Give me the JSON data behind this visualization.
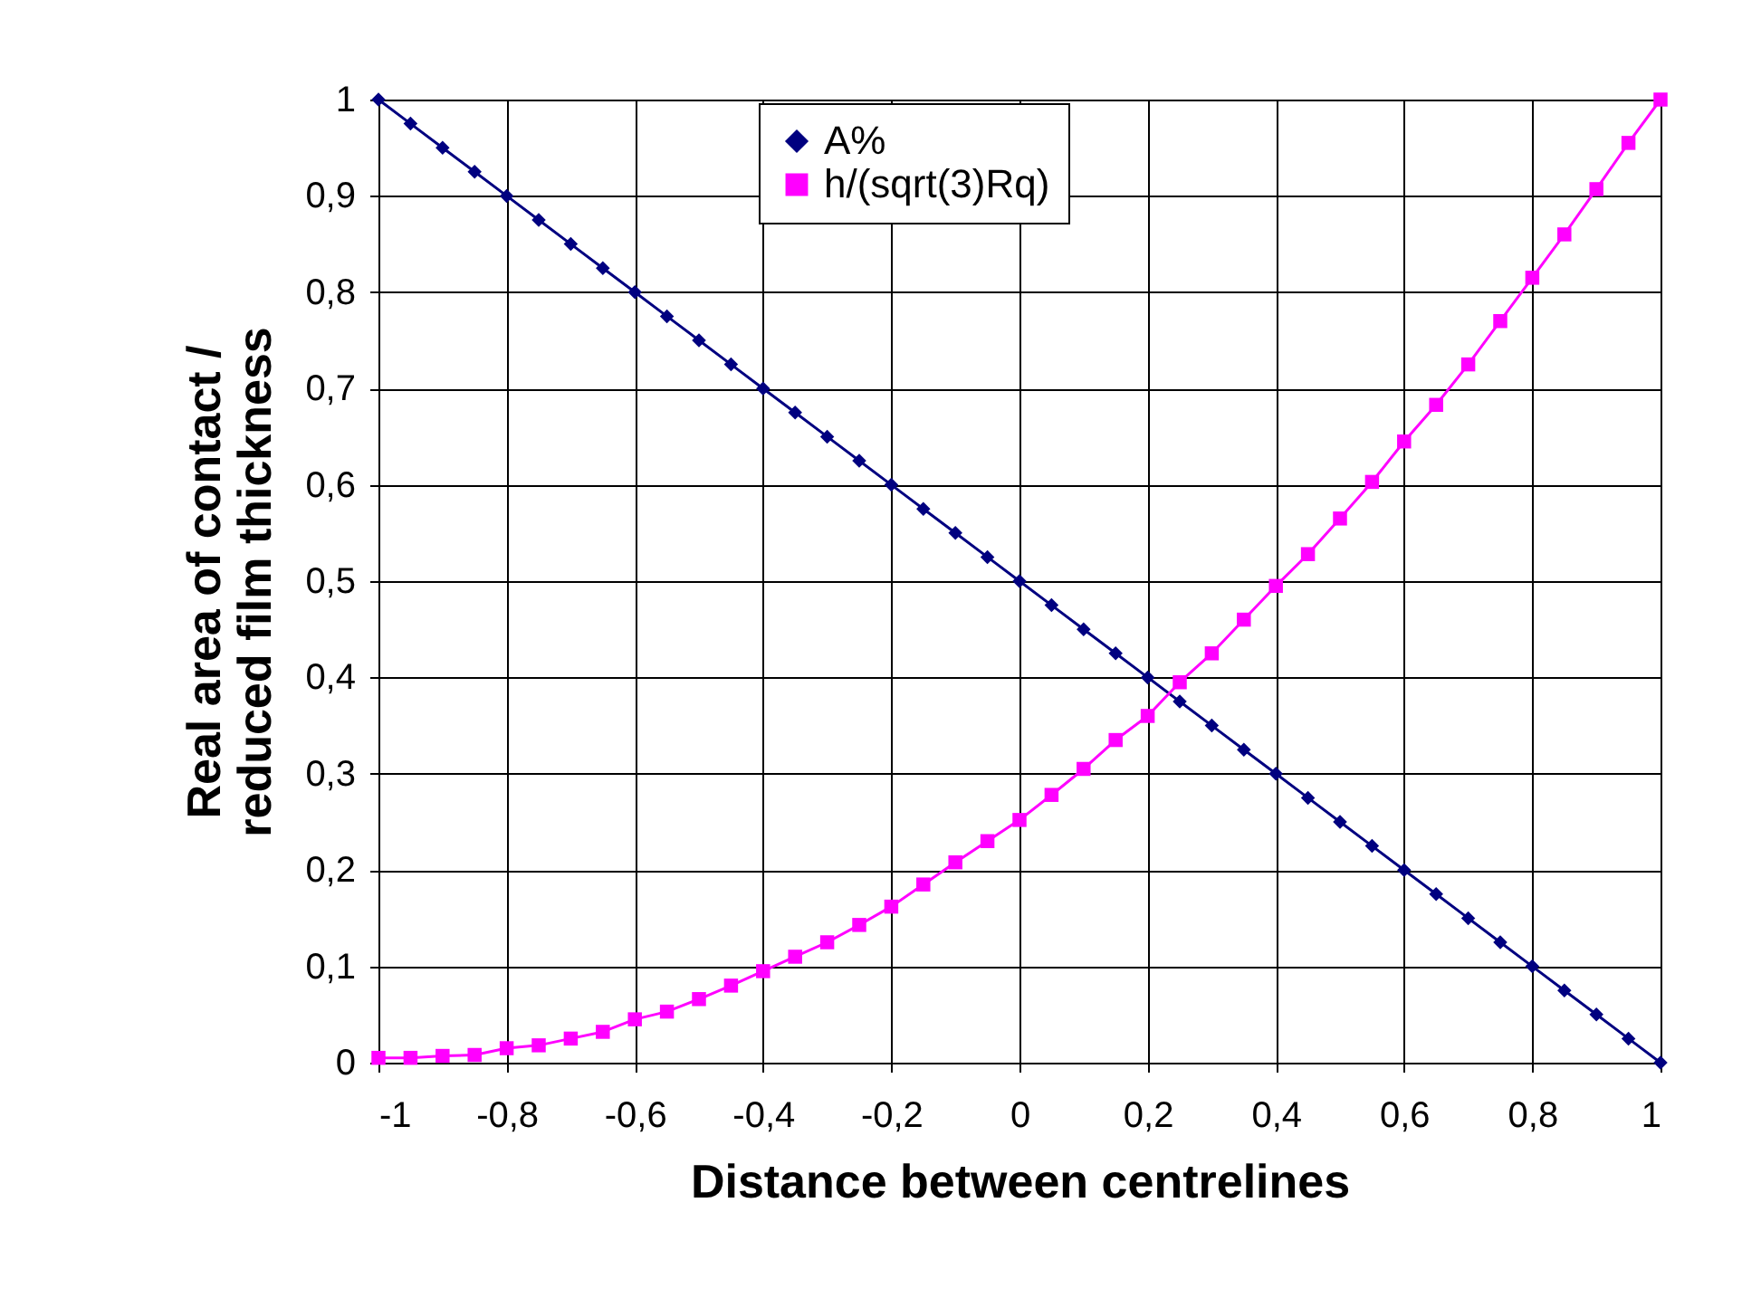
{
  "chart_data": {
    "type": "line",
    "xlabel": "Distance between centrelines",
    "ylabel": "Real area of contact / reduced film thickness",
    "x": [
      -1,
      -0.95,
      -0.9,
      -0.85,
      -0.8,
      -0.75,
      -0.7,
      -0.65,
      -0.6,
      -0.55,
      -0.5,
      -0.45,
      -0.4,
      -0.35,
      -0.3,
      -0.25,
      -0.2,
      -0.15,
      -0.1,
      -0.05,
      0,
      0.05,
      0.1,
      0.15,
      0.2,
      0.25,
      0.3,
      0.35,
      0.4,
      0.45,
      0.5,
      0.55,
      0.6,
      0.65,
      0.7,
      0.75,
      0.8,
      0.85,
      0.9,
      0.95,
      1
    ],
    "series": [
      {
        "name": "A%",
        "color": "#000080",
        "marker": "diamond",
        "values": [
          1,
          0.975,
          0.95,
          0.925,
          0.9,
          0.875,
          0.85,
          0.825,
          0.8,
          0.775,
          0.75,
          0.725,
          0.7,
          0.675,
          0.65,
          0.625,
          0.6,
          0.575,
          0.55,
          0.525,
          0.5,
          0.475,
          0.45,
          0.425,
          0.4,
          0.375,
          0.35,
          0.325,
          0.3,
          0.275,
          0.25,
          0.225,
          0.2,
          0.175,
          0.15,
          0.125,
          0.1,
          0.075,
          0.05,
          0.025,
          0
        ]
      },
      {
        "name": "h/(sqrt(3)Rq)",
        "color": "#ff00ff",
        "marker": "square",
        "values": [
          0.005,
          0.005,
          0.007,
          0.008,
          0.015,
          0.018,
          0.025,
          0.032,
          0.045,
          0.053,
          0.066,
          0.08,
          0.095,
          0.11,
          0.125,
          0.143,
          0.162,
          0.185,
          0.208,
          0.23,
          0.252,
          0.278,
          0.305,
          0.335,
          0.36,
          0.395,
          0.425,
          0.46,
          0.495,
          0.528,
          0.565,
          0.603,
          0.645,
          0.683,
          0.725,
          0.77,
          0.815,
          0.86,
          0.907,
          0.955,
          1
        ]
      }
    ],
    "xlim": [
      -1,
      1
    ],
    "xticks": [
      -1,
      {
        "value": -0.8,
        "label": "-0,8"
      },
      {
        "value": -0.6,
        "label": "-0,6"
      },
      {
        "value": -0.4,
        "label": "-0,4"
      },
      {
        "value": -0.2,
        "label": "-0,2"
      },
      0,
      {
        "value": 0.2,
        "label": "0,2"
      },
      {
        "value": 0.4,
        "label": "0,4"
      },
      {
        "value": 0.6,
        "label": "0,6"
      },
      {
        "value": 0.8,
        "label": "0,8"
      },
      1
    ],
    "ylim": [
      0,
      1
    ],
    "yticks": [
      0,
      {
        "value": 0.1,
        "label": "0,1"
      },
      {
        "value": 0.2,
        "label": "0,2"
      },
      {
        "value": 0.3,
        "label": "0,3"
      },
      {
        "value": 0.4,
        "label": "0,4"
      },
      {
        "value": 0.5,
        "label": "0,5"
      },
      {
        "value": 0.6,
        "label": "0,6"
      },
      {
        "value": 0.7,
        "label": "0,7"
      },
      {
        "value": 0.8,
        "label": "0,8"
      },
      {
        "value": 0.9,
        "label": "0,9"
      },
      1
    ],
    "grid": true,
    "legend": "top",
    "line_style": "solid"
  }
}
